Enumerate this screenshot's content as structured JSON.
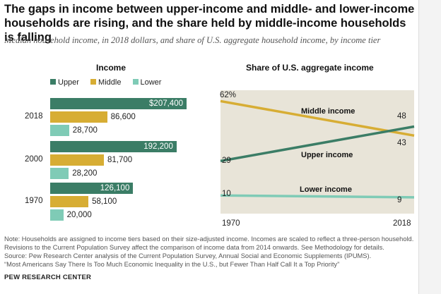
{
  "title": "The gaps in income between upper-income and middle- and lower-income households are rising, and the share held by middle-income households is falling",
  "subtitle": "Median household income, in 2018 dollars, and share of U.S. aggregate household income, by income tier",
  "colors": {
    "upper": "#3b7d66",
    "middle": "#d7ad34",
    "lower": "#7fcbb6",
    "plot_bg": "#e8e4d8"
  },
  "legend": {
    "upper": "Upper",
    "middle": "Middle",
    "lower": "Lower"
  },
  "income_panel": {
    "title": "Income"
  },
  "share_panel": {
    "title": "Share of U.S. aggregate income"
  },
  "chart_data": [
    {
      "type": "bar",
      "title": "Income",
      "categories": [
        "2018",
        "2000",
        "1970"
      ],
      "series": [
        {
          "name": "Upper",
          "values": [
            207400,
            192200,
            126100
          ],
          "labels": [
            "$207,400",
            "192,200",
            "126,100"
          ]
        },
        {
          "name": "Middle",
          "values": [
            86600,
            81700,
            58100
          ],
          "labels": [
            "86,600",
            "81,700",
            "58,100"
          ]
        },
        {
          "name": "Lower",
          "values": [
            28700,
            28200,
            20000
          ],
          "labels": [
            "28,700",
            "28,200",
            "20,000"
          ]
        }
      ],
      "xlim": [
        0,
        240000
      ],
      "legend_position": "top"
    },
    {
      "type": "line",
      "title": "Share of U.S. aggregate income",
      "x": [
        "1970",
        "2018"
      ],
      "series": [
        {
          "name": "Middle income",
          "values": [
            62,
            43
          ],
          "labels": [
            "62%",
            "43"
          ]
        },
        {
          "name": "Upper income",
          "values": [
            29,
            48
          ],
          "labels": [
            "29",
            "48"
          ]
        },
        {
          "name": "Lower income",
          "values": [
            10,
            9
          ],
          "labels": [
            "10",
            "9"
          ]
        }
      ],
      "ylim": [
        0,
        68
      ],
      "grid": false
    }
  ],
  "footnote": {
    "note1": "Note: Households are assigned to income tiers based on their size-adjusted income. Incomes are scaled to reflect a three-person household.",
    "note2": "Revisions to the Current Population Survey affect the comparison of income data from 2014 onwards. See Methodology for details.",
    "source": "Source: Pew Research Center analysis of the Current Population Survey, Annual Social and Economic Supplements (IPUMS).",
    "report": "“Most Americans Say There Is Too Much Economic Inequality in the U.S., but Fewer Than Half Call It a Top Priority”"
  },
  "brand": "PEW RESEARCH CENTER"
}
